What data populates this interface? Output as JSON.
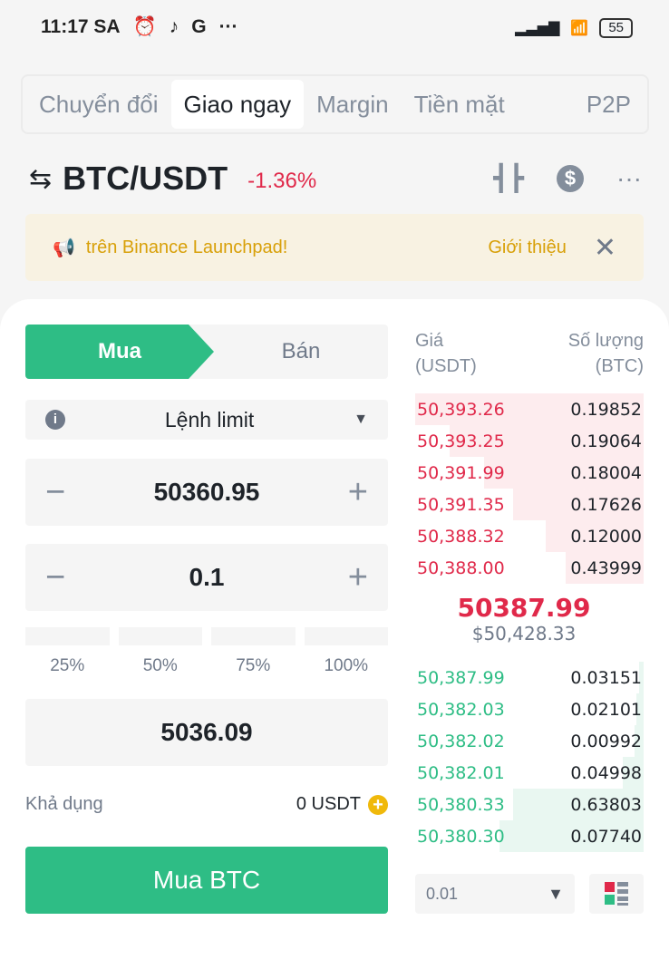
{
  "status": {
    "time": "11:17 SA",
    "battery": "55"
  },
  "tabs": [
    {
      "label": "Chuyển đổi"
    },
    {
      "label": "Giao ngay",
      "active": true
    },
    {
      "label": "Margin"
    },
    {
      "label": "Tiền mặt"
    },
    {
      "label": "P2P"
    }
  ],
  "pair": {
    "name": "BTC/USDT",
    "change": "-1.36%"
  },
  "banner": {
    "text": "trên Binance Launchpad!",
    "link": "Giới thiệu"
  },
  "order": {
    "buy": "Mua",
    "sell": "Bán",
    "type": "Lệnh limit",
    "price": "50360.95",
    "amount": "0.1",
    "percents": [
      "25%",
      "50%",
      "75%",
      "100%"
    ],
    "total": "5036.09",
    "available_label": "Khả dụng",
    "available_value": "0 USDT",
    "submit": "Mua BTC"
  },
  "book": {
    "price_header": "Giá\n(USDT)",
    "qty_header": "Số lượng\n(BTC)",
    "asks": [
      {
        "p": "50,393.26",
        "q": "0.19852",
        "depth": 1.0
      },
      {
        "p": "50,393.25",
        "q": "0.19064",
        "depth": 0.85
      },
      {
        "p": "50,391.99",
        "q": "0.18004",
        "depth": 0.7
      },
      {
        "p": "50,391.35",
        "q": "0.17626",
        "depth": 0.57
      },
      {
        "p": "50,388.32",
        "q": "0.12000",
        "depth": 0.43
      },
      {
        "p": "50,388.00",
        "q": "0.43999",
        "depth": 0.34
      }
    ],
    "last_price": "50387.99",
    "last_usd": "$50,428.33",
    "bids": [
      {
        "p": "50,387.99",
        "q": "0.03151",
        "depth": 0.02
      },
      {
        "p": "50,382.03",
        "q": "0.02101",
        "depth": 0.03
      },
      {
        "p": "50,382.02",
        "q": "0.00992",
        "depth": 0.04
      },
      {
        "p": "50,382.01",
        "q": "0.04998",
        "depth": 0.09
      },
      {
        "p": "50,380.33",
        "q": "0.63803",
        "depth": 0.57
      },
      {
        "p": "50,380.30",
        "q": "0.07740",
        "depth": 0.63
      }
    ],
    "precision": "0.01"
  },
  "colors": {
    "green": "#2ebd85",
    "red": "#e0294a",
    "ask_bg": "#fdecee",
    "bid_bg": "#e9f7f1",
    "banner_text": "#d8a009"
  }
}
